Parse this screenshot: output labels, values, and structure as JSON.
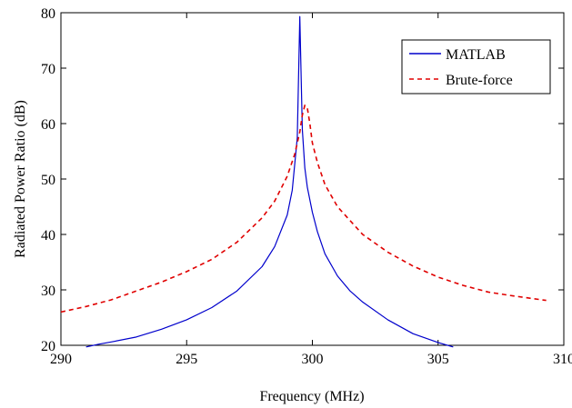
{
  "chart_data": {
    "type": "line",
    "title": "",
    "xlabel": "Frequency (MHz)",
    "ylabel": "Radiated Power Ratio (dB)",
    "xlim": [
      290,
      310
    ],
    "ylim": [
      20,
      80
    ],
    "xticks": [
      290,
      295,
      300,
      305,
      310
    ],
    "yticks": [
      20,
      30,
      40,
      50,
      60,
      70,
      80
    ],
    "xtick_labels": [
      "290",
      "295",
      "300",
      "305",
      "310"
    ],
    "ytick_labels": [
      "20",
      "30",
      "40",
      "50",
      "60",
      "70",
      "80"
    ],
    "grid": false,
    "legend_position": "top-right",
    "series": [
      {
        "name": "MATLAB",
        "color": "#0000cc",
        "style": "solid",
        "x": [
          291.0,
          291.5,
          292.0,
          293.0,
          294.0,
          295.0,
          296.0,
          297.0,
          298.0,
          298.5,
          299.0,
          299.2,
          299.4,
          299.5,
          299.6,
          299.7,
          299.8,
          300.0,
          300.2,
          300.5,
          301.0,
          301.5,
          302.0,
          303.0,
          304.0,
          305.0,
          305.6
        ],
        "y": [
          19.7,
          20.2,
          20.6,
          21.5,
          22.9,
          24.6,
          26.8,
          29.8,
          34.2,
          37.8,
          43.5,
          48.0,
          57.5,
          79.3,
          59.0,
          52.0,
          48.5,
          44.0,
          40.5,
          36.5,
          32.5,
          29.8,
          27.8,
          24.6,
          22.1,
          20.5,
          19.7
        ]
      },
      {
        "name": "Brute-force",
        "color": "#e00000",
        "style": "dashed",
        "x": [
          290.0,
          291.0,
          292.0,
          293.0,
          294.0,
          295.0,
          296.0,
          297.0,
          298.0,
          298.5,
          299.0,
          299.3,
          299.5,
          299.6,
          299.7,
          299.8,
          299.9,
          300.0,
          300.2,
          300.5,
          301.0,
          302.0,
          303.0,
          304.0,
          305.0,
          306.0,
          307.0,
          308.0,
          309.3
        ],
        "y": [
          26.0,
          27.0,
          28.2,
          29.8,
          31.4,
          33.3,
          35.5,
          38.6,
          43.0,
          46.0,
          50.5,
          54.5,
          58.5,
          61.5,
          63.3,
          62.8,
          60.0,
          56.5,
          53.0,
          49.0,
          45.0,
          40.0,
          36.8,
          34.3,
          32.3,
          30.8,
          29.6,
          28.9,
          28.1
        ]
      }
    ]
  }
}
